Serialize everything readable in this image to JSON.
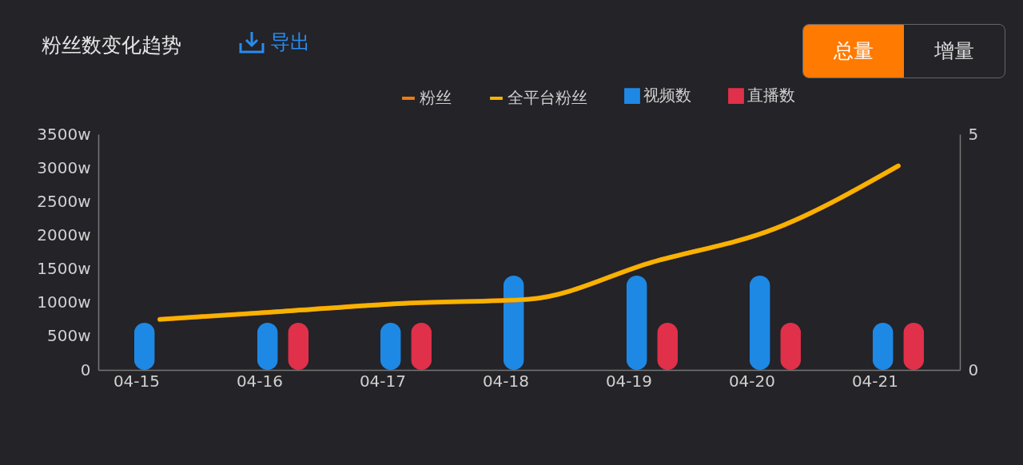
{
  "chart_data": {
    "type": "bar",
    "title": "粉丝数变化趋势",
    "annotations": [
      "导出",
      "总量",
      "增量"
    ],
    "categories": [
      "04-15",
      "04-16",
      "04-17",
      "04-18",
      "04-19",
      "04-20",
      "04-21"
    ],
    "series": [
      {
        "name": "粉丝",
        "type": "line",
        "color": "#f07a10",
        "values": [
          750,
          870,
          990,
          1050,
          1600,
          2100,
          3030
        ]
      },
      {
        "name": "全平台粉丝",
        "type": "line",
        "color": "#f5b400",
        "values": [
          750,
          870,
          990,
          1050,
          1600,
          2100,
          3030
        ]
      },
      {
        "name": "视频数",
        "axis": "y2",
        "color": "#1e88e5",
        "values": [
          1,
          1,
          1,
          2,
          2,
          2,
          1
        ]
      },
      {
        "name": "直播数",
        "axis": "y2",
        "color": "#e0304a",
        "values": [
          null,
          1,
          1,
          null,
          1,
          1,
          1
        ]
      }
    ],
    "ylim": [
      0,
      3500
    ],
    "yticks": [
      0,
      {
        "value": 500,
        "label": "500w"
      },
      {
        "value": 1000,
        "label": "1000w"
      },
      {
        "value": 1500,
        "label": "1500w"
      },
      {
        "value": 2000,
        "label": "2000w"
      },
      {
        "value": 2500,
        "label": "2500w"
      },
      {
        "value": 3000,
        "label": "3000w"
      },
      {
        "value": 3500,
        "label": "3500w"
      }
    ],
    "y2lim": [
      0,
      5
    ],
    "y2ticks": [
      0,
      5
    ],
    "legend": "top right",
    "grid": false
  }
}
